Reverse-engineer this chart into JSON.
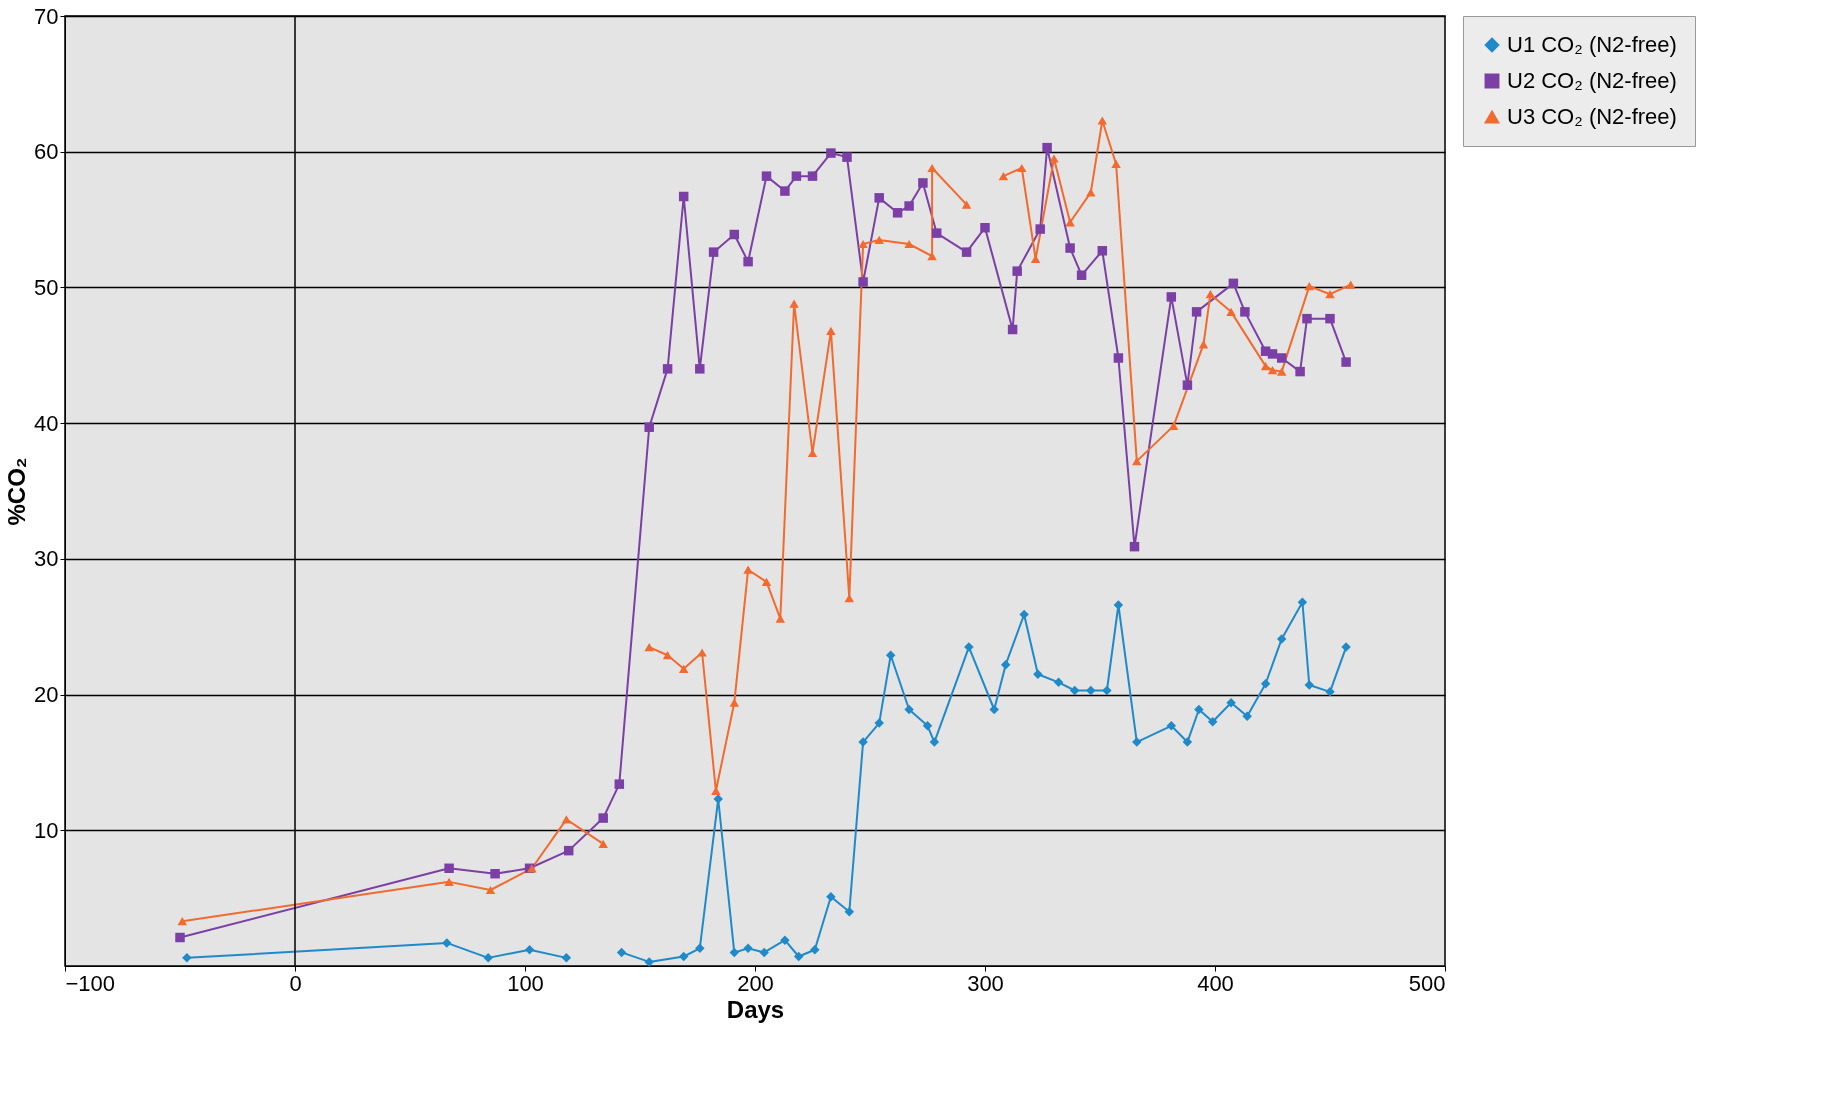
{
  "chart_data": {
    "type": "line",
    "xlabel": "Days",
    "ylabel": "%CO₂",
    "xlim": [
      -100,
      500
    ],
    "xticks": [
      -100,
      0,
      100,
      200,
      300,
      400,
      500
    ],
    "ylim": [
      0,
      70
    ],
    "yticks": [
      10,
      20,
      30,
      40,
      50,
      60,
      70
    ],
    "grid": "y",
    "legend": "right",
    "ref_lines": [
      {
        "axis": "x",
        "value": 0,
        "color": "#000000"
      }
    ],
    "series": [
      {
        "name": "U1 CO₂ (N2-free)",
        "color": "#1f8ac9",
        "marker": "diamond",
        "x": [
          -47,
          66,
          84,
          102,
          118,
          130,
          142,
          154,
          169,
          176,
          184,
          191,
          197,
          204,
          213,
          219,
          226,
          233,
          241,
          247,
          254,
          259,
          267,
          275,
          278,
          293,
          304,
          309,
          317,
          323,
          332,
          339,
          346,
          353,
          358,
          366,
          381,
          388,
          393,
          399,
          407,
          414,
          422,
          429,
          438,
          441,
          450,
          457
        ],
        "values": [
          0.6,
          1.7,
          0.6,
          1.2,
          0.6,
          null,
          1.0,
          0.3,
          0.7,
          1.3,
          12.3,
          1.0,
          1.3,
          1.0,
          1.9,
          0.7,
          1.2,
          5.1,
          4.0,
          16.5,
          17.9,
          22.9,
          18.9,
          17.7,
          16.5,
          23.5,
          18.9,
          22.2,
          25.9,
          21.5,
          20.9,
          20.3,
          20.3,
          20.3,
          26.6,
          16.5,
          17.7,
          16.5,
          18.9,
          18.0,
          19.4,
          18.4,
          20.8,
          24.1,
          26.8,
          20.7,
          20.2,
          23.5
        ]
      },
      {
        "name": "U2 CO₂ (N2-free)",
        "color": "#7b3fa6",
        "marker": "square",
        "x": [
          -50,
          67,
          87,
          102,
          119,
          134,
          141,
          154,
          162,
          169,
          176,
          182,
          191,
          197,
          205,
          213,
          218,
          225,
          233,
          240,
          247,
          254,
          262,
          267,
          273,
          279,
          292,
          300,
          312,
          314,
          324,
          327,
          337,
          342,
          351,
          358,
          365,
          381,
          388,
          392,
          408,
          413,
          422,
          425,
          429,
          437,
          440,
          450,
          457
        ],
        "values": [
          2.1,
          7.2,
          6.8,
          7.2,
          8.5,
          10.9,
          13.4,
          39.7,
          44.0,
          56.7,
          44.0,
          52.6,
          53.9,
          51.9,
          58.2,
          57.1,
          58.2,
          58.2,
          59.9,
          59.6,
          50.4,
          56.6,
          55.5,
          56.0,
          57.7,
          54.0,
          52.6,
          54.4,
          46.9,
          51.2,
          54.3,
          60.3,
          52.9,
          50.9,
          52.7,
          44.8,
          30.9,
          49.3,
          42.8,
          48.2,
          50.3,
          48.2,
          45.3,
          45.1,
          44.8,
          43.8,
          47.7,
          47.7,
          44.5
        ]
      },
      {
        "name": "U3 CO₂ (N2-free)",
        "color": "#f26a2e",
        "marker": "triangle",
        "x": [
          -49,
          67,
          85,
          103,
          118,
          134,
          144,
          154,
          162,
          169,
          177,
          183,
          191,
          197,
          205,
          211,
          217,
          225,
          233,
          241,
          247,
          254,
          267,
          277,
          277,
          292,
          300,
          308,
          316,
          322,
          330,
          337,
          346,
          351,
          357,
          366,
          382,
          395,
          398,
          407,
          422,
          425,
          429,
          441,
          450,
          459
        ],
        "values": [
          3.3,
          6.2,
          5.6,
          7.2,
          10.8,
          9.0,
          null,
          23.5,
          22.9,
          21.9,
          23.1,
          12.9,
          19.4,
          29.2,
          28.3,
          25.6,
          48.8,
          37.8,
          46.8,
          27.1,
          53.2,
          53.5,
          53.2,
          52.3,
          58.8,
          56.1,
          null,
          58.2,
          58.8,
          52.1,
          59.5,
          54.8,
          57.0,
          62.3,
          59.1,
          37.2,
          39.8,
          45.8,
          49.5,
          48.2,
          44.2,
          43.9,
          43.8,
          50.1,
          49.5,
          50.2
        ]
      }
    ]
  }
}
